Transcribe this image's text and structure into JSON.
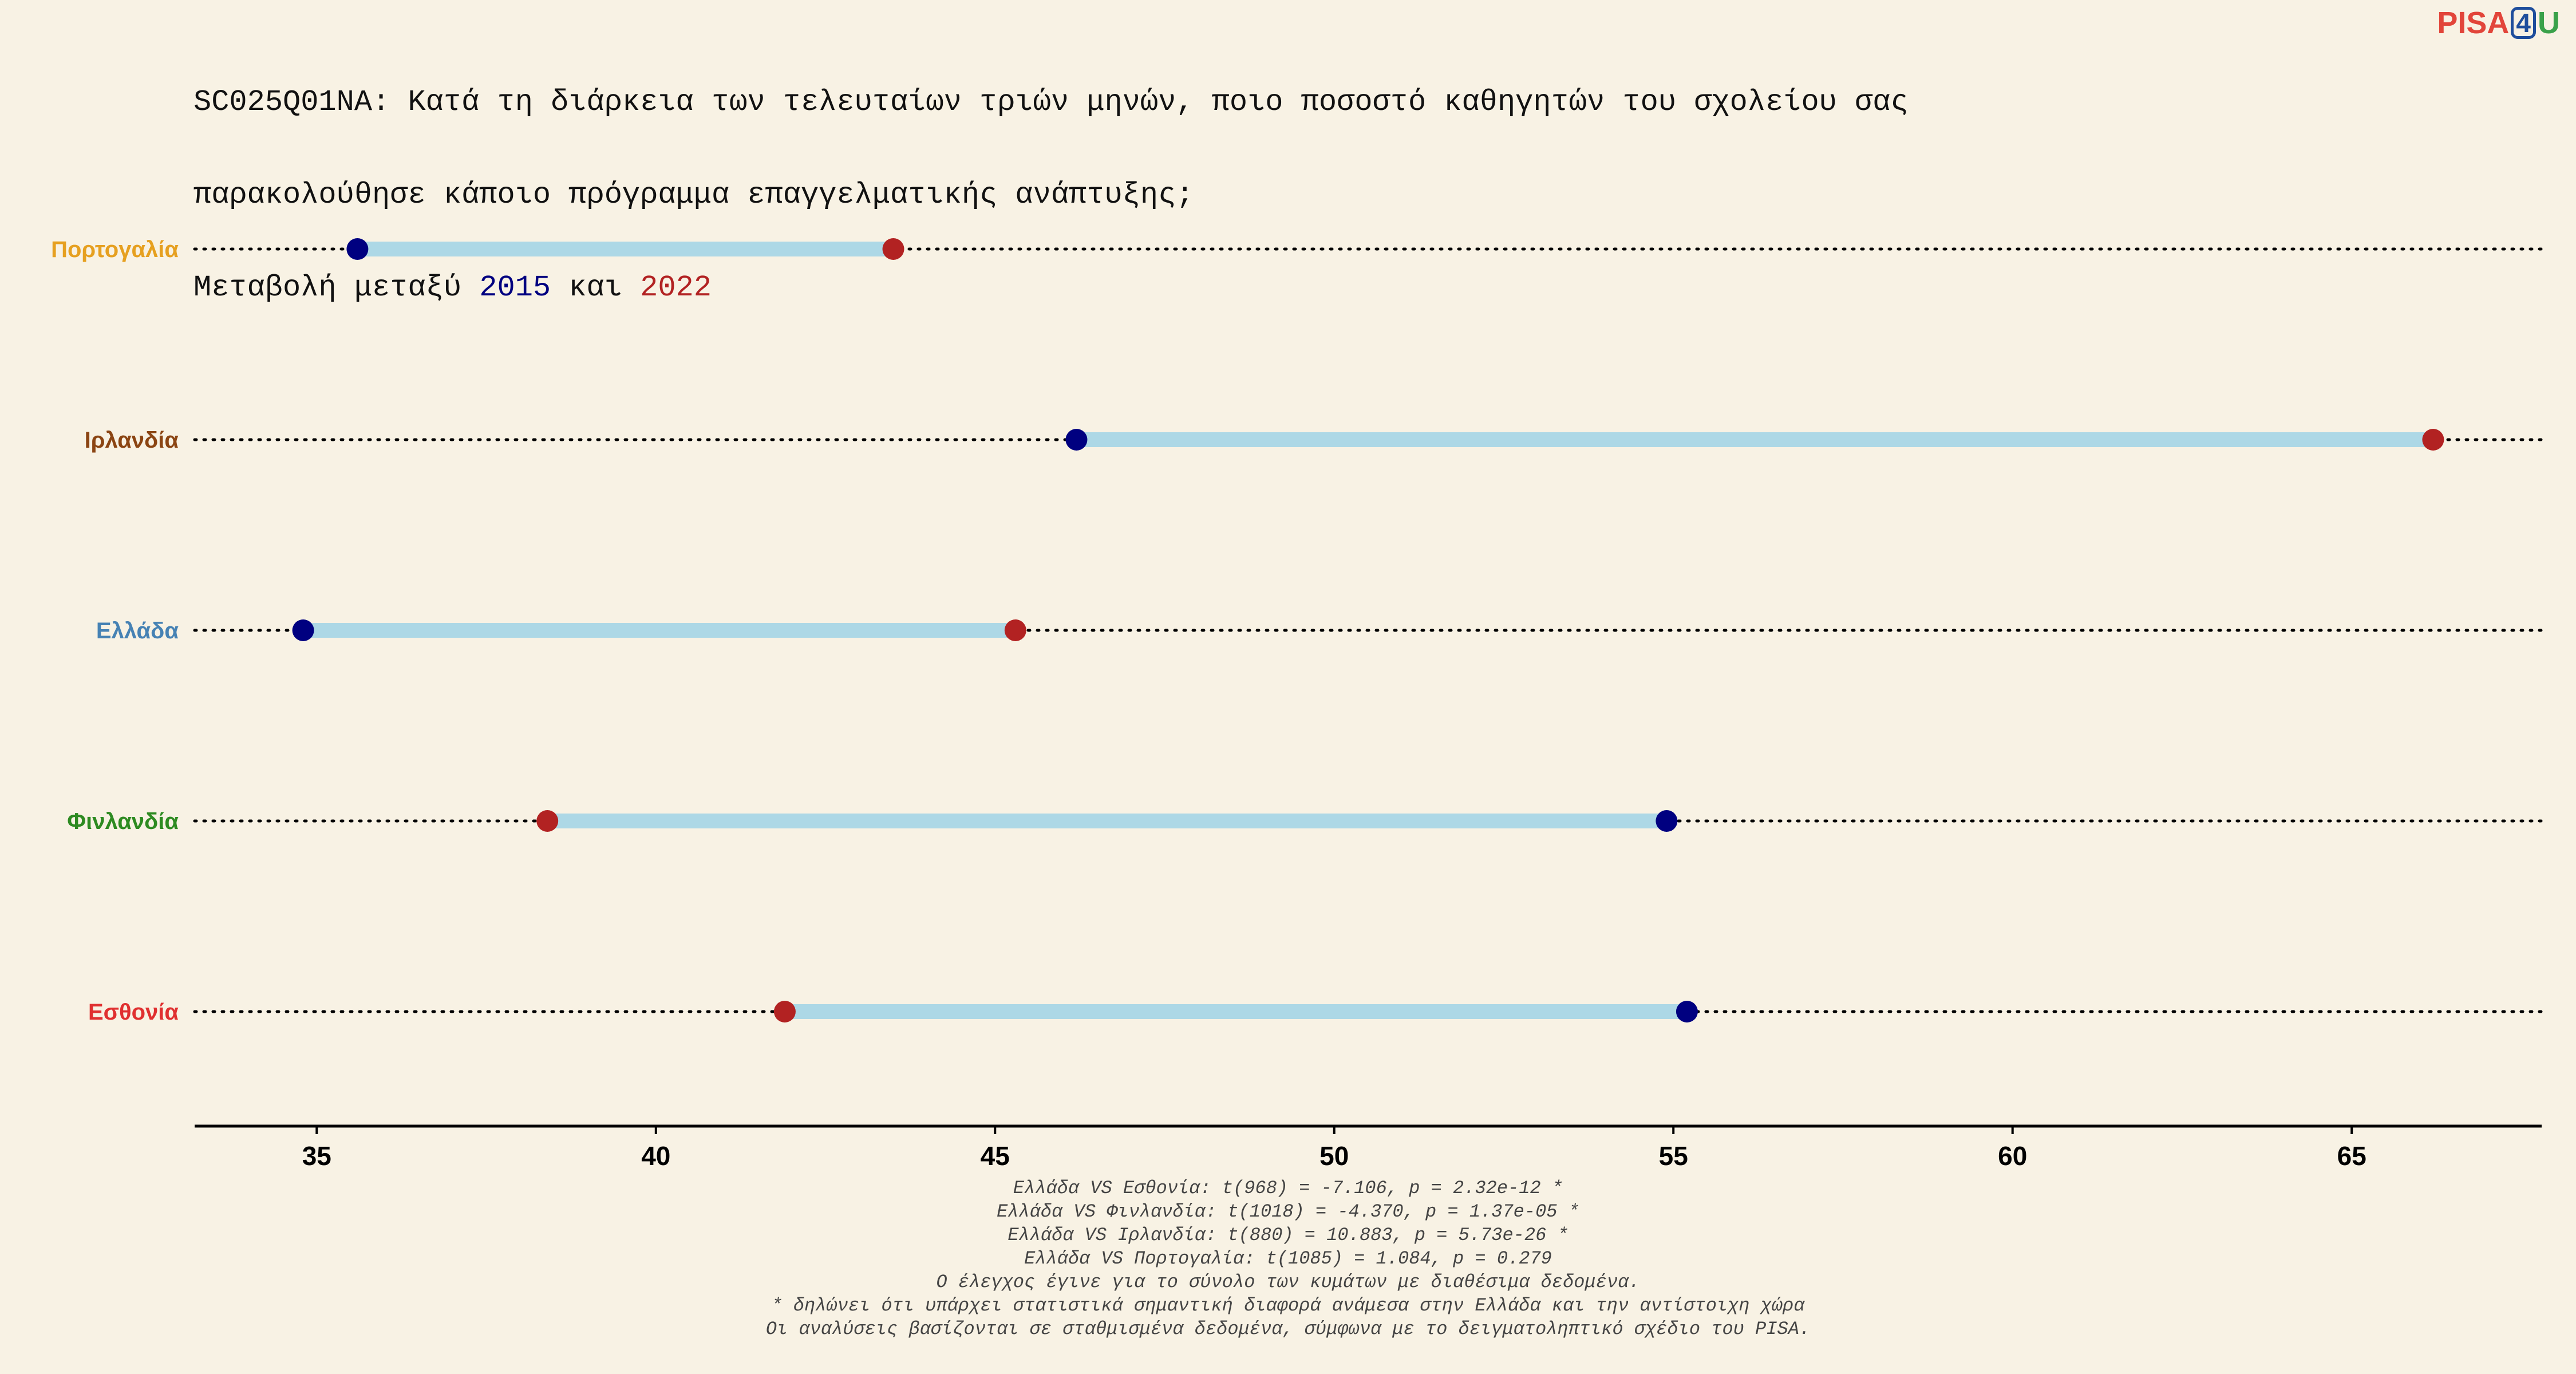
{
  "title": {
    "line1": "SC025Q01NA: Κατά τη διάρκεια των τελευταίων τριών μηνών, ποιο ποσοστό καθηγητών του σχολείου σας",
    "line2": "παρακολούθησε κάποιο πρόγραμμα επαγγελματικής ανάπτυξης;",
    "line3_prefix": "Μεταβολή μεταξύ ",
    "year_a": "2015",
    "line3_mid": " και ",
    "year_b": "2022"
  },
  "logo": {
    "pisa": "PISA",
    "four": "4",
    "u": "U"
  },
  "colors": {
    "year_2015": "#000080",
    "year_2022": "#b22222",
    "connector": "#add8e6",
    "background": "#f8f2e4"
  },
  "chart_data": {
    "type": "dumbbell",
    "x_ticks": [
      35,
      40,
      45,
      50,
      55,
      60,
      65
    ],
    "xlim": [
      33.2,
      67.8
    ],
    "categories": [
      {
        "name": "Πορτογαλία",
        "color": "#e6a020",
        "v2015": 35.6,
        "v2022": 43.5
      },
      {
        "name": "Ιρλανδία",
        "color": "#8b4513",
        "v2015": 46.2,
        "v2022": 66.2
      },
      {
        "name": "Ελλάδα",
        "color": "#4682b4",
        "v2015": 34.8,
        "v2022": 45.3
      },
      {
        "name": "Φινλανδία",
        "color": "#2e8b22",
        "v2015": 54.9,
        "v2022": 38.4
      },
      {
        "name": "Εσθονία",
        "color": "#e03030",
        "v2015": 55.2,
        "v2022": 41.9
      }
    ]
  },
  "footnotes": [
    "Ελλάδα VS Εσθονία: t(968) = -7.106, p = 2.32e-12 *",
    "Ελλάδα VS Φινλανδία: t(1018) = -4.370, p = 1.37e-05 *",
    "Ελλάδα VS Ιρλανδία: t(880) = 10.883, p = 5.73e-26 *",
    "Ελλάδα VS Πορτογαλία: t(1085) = 1.084, p = 0.279",
    "Ο έλεγχος έγινε για το σύνολο των κυμάτων με διαθέσιμα δεδομένα.",
    "* δηλώνει ότι υπάρχει στατιστικά σημαντική διαφορά ανάμεσα στην Ελλάδα και την αντίστοιχη χώρα",
    "Οι αναλύσεις βασίζονται σε σταθμισμένα δεδομένα, σύμφωνα με το δειγματοληπτικό σχέδιο του PISA."
  ]
}
